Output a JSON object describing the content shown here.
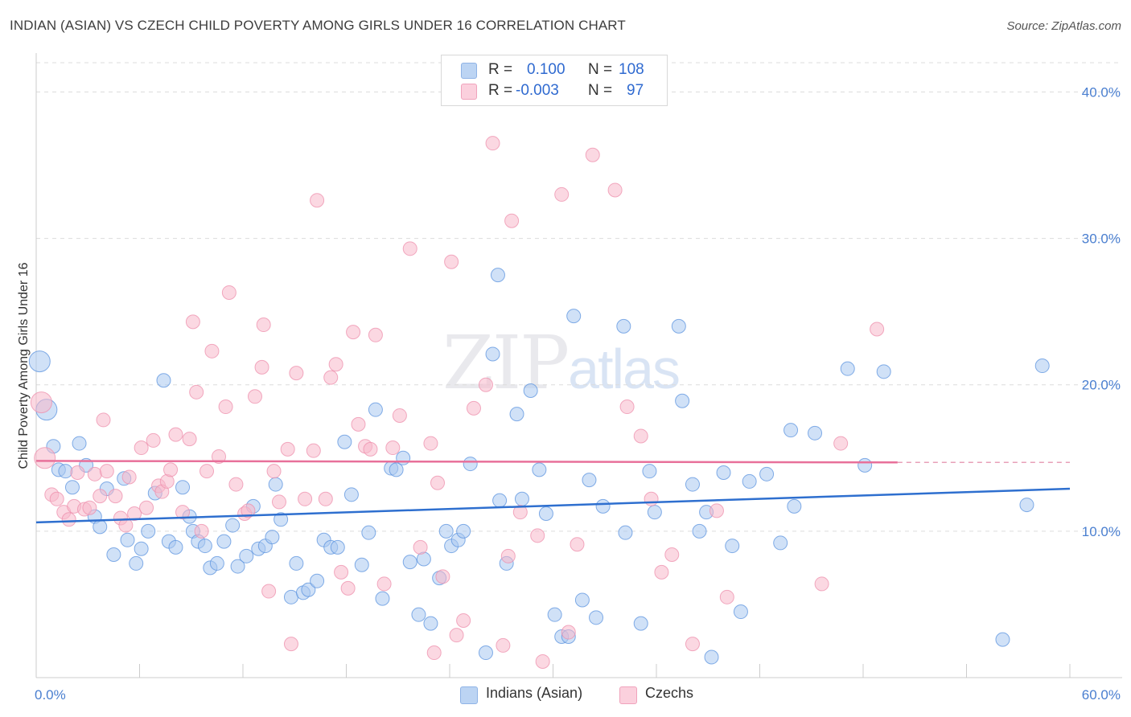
{
  "title": "INDIAN (ASIAN) VS CZECH CHILD POVERTY AMONG GIRLS UNDER 16 CORRELATION CHART",
  "source": "Source: ZipAtlas.com",
  "watermark": {
    "zip": "ZIP",
    "atlas": "atlas"
  },
  "legend": {
    "rows": [
      {
        "r_label": "R =",
        "r_value": "0.100",
        "n_label": "N =",
        "n_value": "108",
        "color": "#a9c8f0"
      },
      {
        "r_label": "R =",
        "r_value": "-0.003",
        "n_label": "N =",
        "n_value": "97",
        "color": "#f7b8cb"
      }
    ]
  },
  "bottom_legend": [
    {
      "label": "Indians (Asian)",
      "color": "#a9c8f0"
    },
    {
      "label": "Czechs",
      "color": "#f7b8cb"
    }
  ],
  "chart_data": {
    "type": "scatter",
    "title": "INDIAN (ASIAN) VS CZECH CHILD POVERTY AMONG GIRLS UNDER 16 CORRELATION CHART",
    "xlabel": "",
    "ylabel": "Child Poverty Among Girls Under 16",
    "xlim": [
      0,
      60
    ],
    "ylim": [
      0,
      42
    ],
    "x_ticks": [
      "0.0%",
      "60.0%"
    ],
    "y_ticks": [
      {
        "value": 10,
        "label": "10.0%"
      },
      {
        "value": 20,
        "label": "20.0%"
      },
      {
        "value": 30,
        "label": "30.0%"
      },
      {
        "value": 40,
        "label": "40.0%"
      }
    ],
    "grid": "horizontal dashed",
    "series": [
      {
        "name": "Indians (Asian)",
        "color": "#5b93df",
        "fill": "#a9c8f0",
        "trend": {
          "x": [
            0,
            60
          ],
          "y": [
            10.6,
            12.9
          ]
        },
        "points": [
          [
            0.2,
            21.6
          ],
          [
            0.6,
            18.3
          ],
          [
            1,
            15.8
          ],
          [
            1.3,
            14.2
          ],
          [
            1.7,
            14.1
          ],
          [
            2.1,
            13
          ],
          [
            2.5,
            16
          ],
          [
            2.9,
            14.5
          ],
          [
            3.4,
            11
          ],
          [
            3.7,
            10.3
          ],
          [
            4.1,
            12.9
          ],
          [
            4.5,
            8.4
          ],
          [
            5.1,
            13.6
          ],
          [
            5.3,
            9.4
          ],
          [
            5.8,
            7.8
          ],
          [
            6.1,
            8.8
          ],
          [
            6.5,
            10
          ],
          [
            6.9,
            12.6
          ],
          [
            7.4,
            20.3
          ],
          [
            7.7,
            9.3
          ],
          [
            8.1,
            8.9
          ],
          [
            8.5,
            13
          ],
          [
            8.9,
            11
          ],
          [
            9.1,
            10
          ],
          [
            9.4,
            9.3
          ],
          [
            9.8,
            9
          ],
          [
            10.1,
            7.5
          ],
          [
            10.5,
            7.8
          ],
          [
            10.9,
            9.3
          ],
          [
            11.4,
            10.4
          ],
          [
            11.7,
            7.6
          ],
          [
            12.2,
            8.3
          ],
          [
            12.6,
            11.7
          ],
          [
            12.9,
            8.8
          ],
          [
            13.3,
            9
          ],
          [
            13.7,
            9.6
          ],
          [
            13.9,
            13.2
          ],
          [
            14.2,
            10.8
          ],
          [
            14.8,
            5.5
          ],
          [
            15.1,
            7.8
          ],
          [
            15.5,
            5.8
          ],
          [
            15.8,
            6
          ],
          [
            16.3,
            6.6
          ],
          [
            16.7,
            9.4
          ],
          [
            17.1,
            8.9
          ],
          [
            17.5,
            8.9
          ],
          [
            17.9,
            16.1
          ],
          [
            18.3,
            12.5
          ],
          [
            18.9,
            7.7
          ],
          [
            19.3,
            9.9
          ],
          [
            19.7,
            18.3
          ],
          [
            20.1,
            5.4
          ],
          [
            20.6,
            14.3
          ],
          [
            20.9,
            14.2
          ],
          [
            21.3,
            15
          ],
          [
            21.7,
            7.9
          ],
          [
            22.2,
            4.3
          ],
          [
            22.5,
            8.1
          ],
          [
            22.9,
            3.7
          ],
          [
            23.4,
            6.8
          ],
          [
            23.8,
            10
          ],
          [
            24.1,
            9
          ],
          [
            24.5,
            9.4
          ],
          [
            24.8,
            10
          ],
          [
            25.2,
            14.6
          ],
          [
            26.1,
            1.7
          ],
          [
            26.5,
            22.1
          ],
          [
            26.8,
            27.5
          ],
          [
            26.9,
            12.1
          ],
          [
            27.3,
            7.8
          ],
          [
            27.9,
            18
          ],
          [
            28.2,
            12.2
          ],
          [
            28.7,
            19.6
          ],
          [
            29.2,
            14.2
          ],
          [
            29.6,
            11.2
          ],
          [
            30.1,
            4.3
          ],
          [
            30.5,
            2.8
          ],
          [
            30.9,
            2.8
          ],
          [
            31.2,
            24.7
          ],
          [
            31.7,
            5.3
          ],
          [
            32.1,
            13.5
          ],
          [
            32.5,
            4.1
          ],
          [
            32.9,
            11.7
          ],
          [
            34.1,
            24
          ],
          [
            34.2,
            9.9
          ],
          [
            35.1,
            3.7
          ],
          [
            35.6,
            14.1
          ],
          [
            35.9,
            11.3
          ],
          [
            37.3,
            24
          ],
          [
            37.5,
            18.9
          ],
          [
            38.1,
            13.2
          ],
          [
            38.5,
            10
          ],
          [
            38.9,
            11.3
          ],
          [
            39.2,
            1.4
          ],
          [
            39.9,
            14
          ],
          [
            40.4,
            9
          ],
          [
            40.9,
            4.5
          ],
          [
            41.4,
            13.4
          ],
          [
            42.4,
            13.9
          ],
          [
            43.2,
            9.2
          ],
          [
            43.8,
            16.9
          ],
          [
            44,
            11.7
          ],
          [
            45.2,
            16.7
          ],
          [
            47.1,
            21.1
          ],
          [
            48.1,
            14.5
          ],
          [
            49.2,
            20.9
          ],
          [
            56.1,
            2.6
          ],
          [
            57.5,
            11.8
          ],
          [
            58.4,
            21.3
          ]
        ]
      },
      {
        "name": "Czechs",
        "color": "#ee8fac",
        "fill": "#f7b8cb",
        "trend": {
          "x": [
            0,
            50
          ],
          "y": [
            14.8,
            14.7
          ]
        },
        "points": [
          [
            0.3,
            18.8
          ],
          [
            0.5,
            15
          ],
          [
            0.9,
            12.5
          ],
          [
            1.2,
            12.2
          ],
          [
            1.6,
            11.3
          ],
          [
            1.9,
            10.8
          ],
          [
            2.2,
            11.7
          ],
          [
            2.4,
            14
          ],
          [
            2.8,
            11.5
          ],
          [
            3.1,
            11.6
          ],
          [
            3.4,
            13.9
          ],
          [
            3.7,
            12.4
          ],
          [
            3.9,
            17.6
          ],
          [
            4.1,
            14.1
          ],
          [
            4.6,
            12.4
          ],
          [
            4.9,
            10.9
          ],
          [
            5.2,
            10.4
          ],
          [
            5.4,
            13.7
          ],
          [
            5.7,
            11.2
          ],
          [
            6.1,
            15.7
          ],
          [
            6.4,
            11.6
          ],
          [
            6.8,
            16.2
          ],
          [
            7.1,
            13.1
          ],
          [
            7.3,
            12.7
          ],
          [
            7.6,
            13.4
          ],
          [
            7.8,
            14.2
          ],
          [
            8.1,
            16.6
          ],
          [
            8.5,
            11.3
          ],
          [
            8.9,
            16.3
          ],
          [
            9.1,
            24.3
          ],
          [
            9.3,
            19.5
          ],
          [
            9.6,
            10
          ],
          [
            9.9,
            14.1
          ],
          [
            10.2,
            22.3
          ],
          [
            10.6,
            15.1
          ],
          [
            11,
            18.5
          ],
          [
            11.2,
            26.3
          ],
          [
            11.6,
            13.2
          ],
          [
            12.1,
            11.2
          ],
          [
            12.3,
            11.4
          ],
          [
            12.7,
            19.2
          ],
          [
            13.1,
            21.2
          ],
          [
            13.2,
            24.1
          ],
          [
            13.5,
            5.9
          ],
          [
            13.8,
            14.1
          ],
          [
            14.1,
            12
          ],
          [
            14.6,
            15.6
          ],
          [
            14.8,
            2.3
          ],
          [
            15.1,
            20.8
          ],
          [
            15.6,
            12.2
          ],
          [
            16.1,
            15.5
          ],
          [
            16.3,
            32.6
          ],
          [
            16.8,
            12.2
          ],
          [
            17.1,
            20.5
          ],
          [
            17.4,
            21.4
          ],
          [
            17.7,
            7.2
          ],
          [
            18.1,
            6.1
          ],
          [
            18.4,
            23.6
          ],
          [
            18.7,
            17.3
          ],
          [
            19.1,
            15.8
          ],
          [
            19.4,
            15.6
          ],
          [
            19.7,
            23.4
          ],
          [
            20.2,
            6.4
          ],
          [
            20.7,
            15.7
          ],
          [
            21.1,
            17.9
          ],
          [
            21.7,
            29.3
          ],
          [
            22.3,
            8.9
          ],
          [
            22.9,
            16
          ],
          [
            23.1,
            1.7
          ],
          [
            23.3,
            13.3
          ],
          [
            23.6,
            6.9
          ],
          [
            24.1,
            28.4
          ],
          [
            24.4,
            2.9
          ],
          [
            24.8,
            3.9
          ],
          [
            25.4,
            18.4
          ],
          [
            26.1,
            20
          ],
          [
            26.5,
            36.5
          ],
          [
            27.1,
            2.2
          ],
          [
            27.4,
            8.3
          ],
          [
            27.6,
            31.2
          ],
          [
            28.1,
            11.3
          ],
          [
            29.1,
            9.7
          ],
          [
            29.4,
            1.1
          ],
          [
            30.5,
            33
          ],
          [
            30.9,
            3.1
          ],
          [
            31.4,
            9.1
          ],
          [
            32.3,
            35.7
          ],
          [
            33.6,
            33.3
          ],
          [
            34.3,
            18.5
          ],
          [
            35.1,
            16.5
          ],
          [
            35.7,
            12.2
          ],
          [
            36.3,
            7.2
          ],
          [
            36.9,
            8.4
          ],
          [
            38.1,
            2.3
          ],
          [
            39.5,
            11.4
          ],
          [
            40.1,
            5.5
          ],
          [
            45.6,
            6.4
          ],
          [
            46.7,
            16
          ],
          [
            48.8,
            23.8
          ]
        ]
      }
    ]
  }
}
